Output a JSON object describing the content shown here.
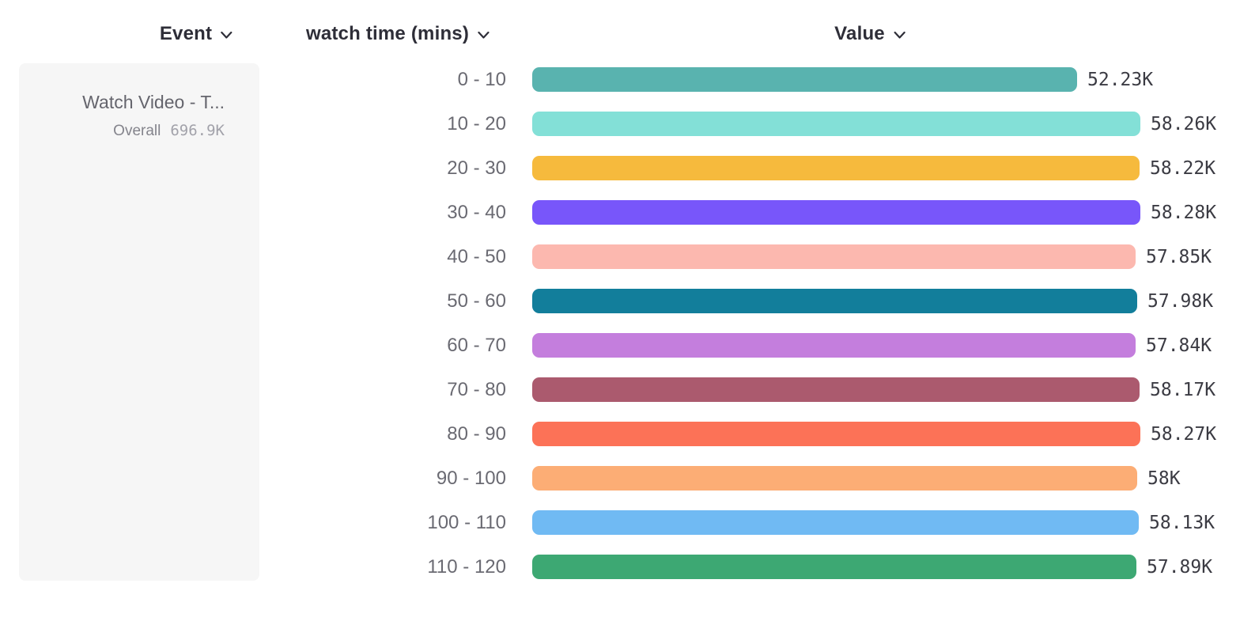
{
  "headers": {
    "event": "Event",
    "breakdown": "watch time (mins)",
    "value": "Value"
  },
  "event_card": {
    "title": "Watch Video - T...",
    "overall_label": "Overall",
    "overall_value": "696.9K"
  },
  "chart_data": {
    "type": "bar",
    "orientation": "horizontal",
    "title": "",
    "xlabel": "Value",
    "ylabel": "watch time (mins)",
    "categories": [
      "0 - 10",
      "10 - 20",
      "20 - 30",
      "30 - 40",
      "40 - 50",
      "50 - 60",
      "60 - 70",
      "70 - 80",
      "80 - 90",
      "90 - 100",
      "100 - 110",
      "110 - 120"
    ],
    "values": [
      52230,
      58260,
      58220,
      58280,
      57850,
      57980,
      57840,
      58170,
      58270,
      58000,
      58130,
      57890
    ],
    "value_labels": [
      "52.23K",
      "58.26K",
      "58.22K",
      "58.28K",
      "57.85K",
      "57.98K",
      "57.84K",
      "58.17K",
      "58.27K",
      "58K",
      "58.13K",
      "57.89K"
    ],
    "bar_colors": [
      "#59B3AF",
      "#83E0D7",
      "#F6BA3D",
      "#7856FA",
      "#FCB8AF",
      "#127E9B",
      "#C47EDD",
      "#AB5A6E",
      "#FC7257",
      "#FCAD75",
      "#70BAF3",
      "#3DA873"
    ],
    "overall_total": "696.9K",
    "legend": false,
    "grid": false
  },
  "colors": {
    "header_text": "#2E2E38",
    "category_text": "#6A6A72",
    "value_text": "#3B3B43",
    "card_background": "#F6F6F6",
    "card_title_text": "#65656D",
    "overall_label_text": "#84848C",
    "overall_value_text": "#A2A2AA"
  },
  "icons": {
    "chevron_down": "v"
  }
}
